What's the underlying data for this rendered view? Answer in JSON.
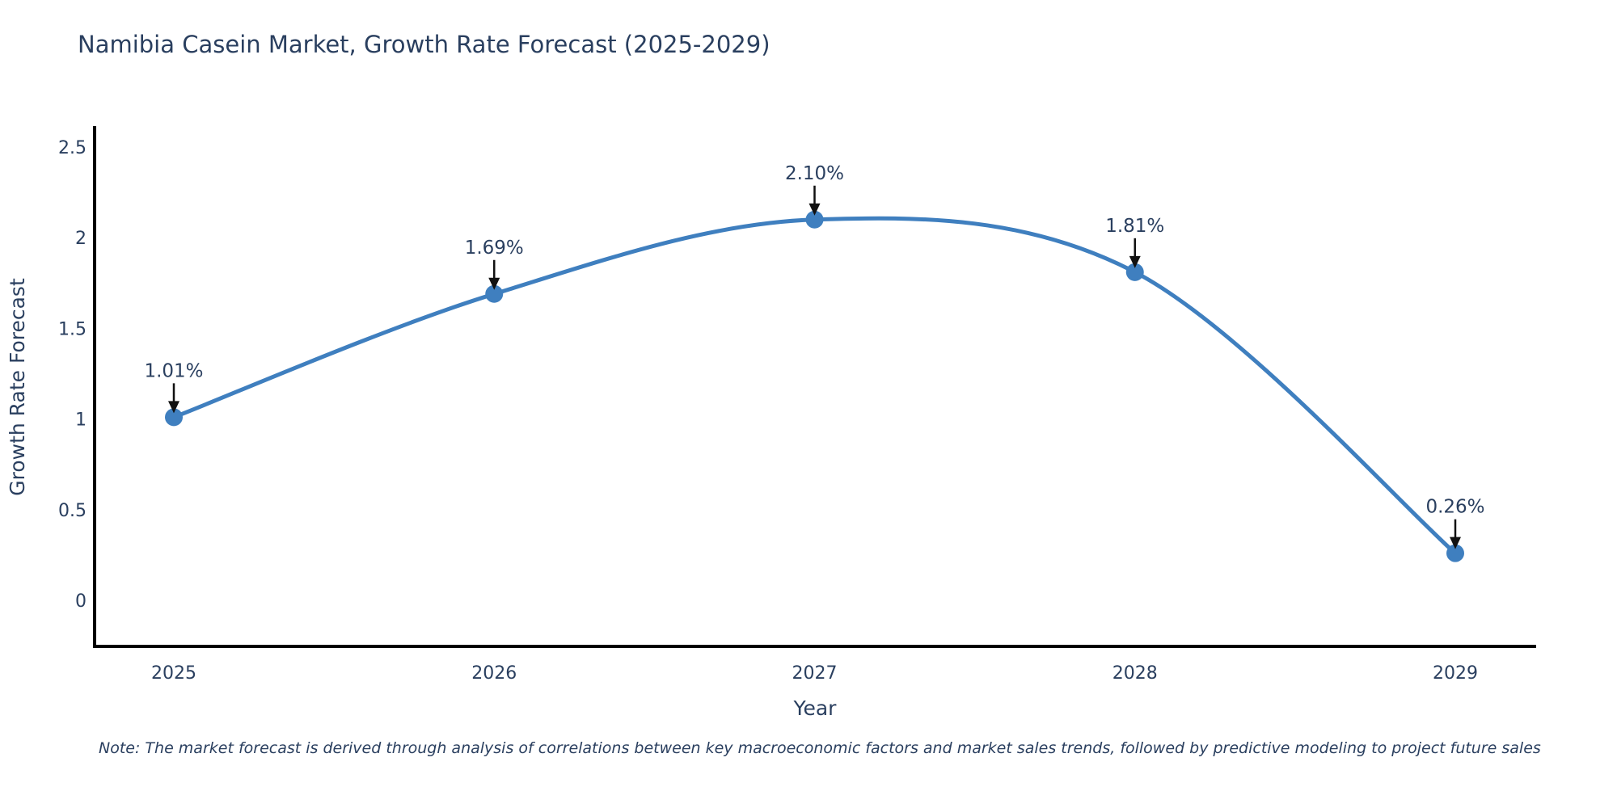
{
  "title": "Namibia Casein Market, Growth Rate Forecast (2025-2029)",
  "note": "Note: The market forecast is derived through analysis of correlations between key macroeconomic factors and market sales trends, followed by predictive modeling to project future sales",
  "chart_data": {
    "type": "line",
    "title": "Namibia Casein Market, Growth Rate Forecast (2025-2029)",
    "xlabel": "Year",
    "ylabel": "Growth Rate Forecast",
    "categories": [
      "2025",
      "2026",
      "2027",
      "2028",
      "2029"
    ],
    "x": [
      2025,
      2026,
      2027,
      2028,
      2029
    ],
    "values": [
      1.01,
      1.69,
      2.1,
      1.81,
      0.26
    ],
    "point_labels": [
      "1.01%",
      "1.69%",
      "2.10%",
      "1.81%",
      "0.26%"
    ],
    "yticks": [
      0,
      0.5,
      1,
      1.5,
      2,
      2.5
    ],
    "ytick_labels": [
      "0",
      "0.5",
      "1",
      "1.5",
      "2",
      "2.5"
    ],
    "xlim": [
      2024.75,
      2029.25
    ],
    "ylim": [
      -0.25,
      2.61
    ],
    "line_shape": "spline",
    "grid": false,
    "legend_position": "none",
    "colors": {
      "line": "#3f7fbf",
      "marker": "#3f7fbf",
      "axis": "#000000",
      "text": "#2a3f5f",
      "arrow": "#111111"
    }
  }
}
